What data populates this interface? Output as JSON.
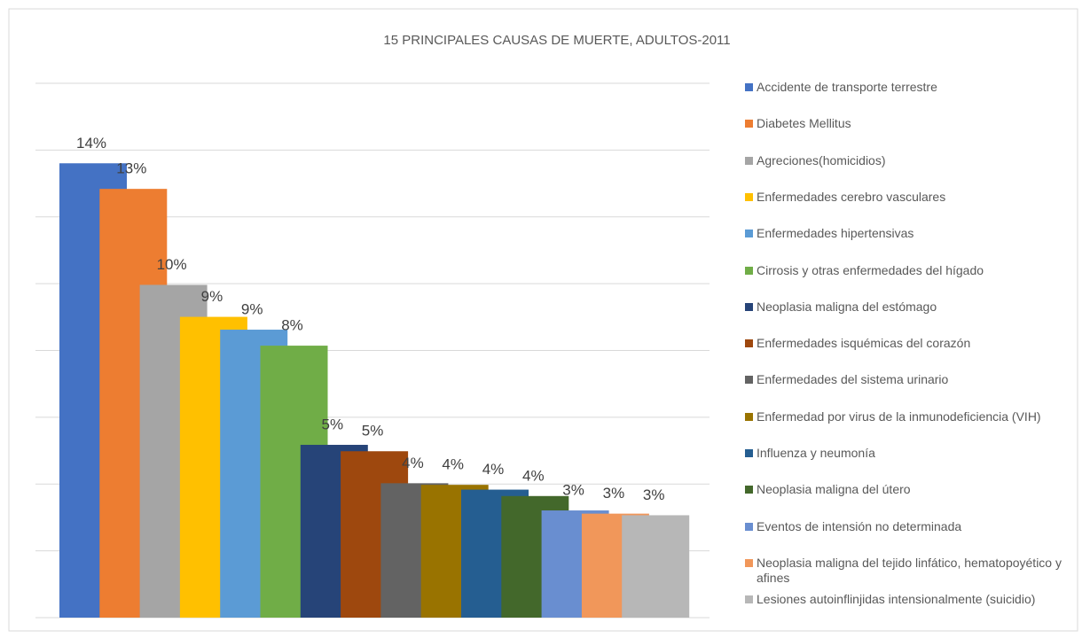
{
  "chart_data": {
    "type": "bar",
    "title": "15 PRINCIPALES CAUSAS DE MUERTE, ADULTOS-2011",
    "ylim": [
      0,
      16.7
    ],
    "grid": true,
    "series": [
      {
        "name": "Accidente de transporte terrestre",
        "color": "#4472c4",
        "values": [
          14.2
        ],
        "value_labels": [
          "14%"
        ]
      },
      {
        "name": "Diabetes Mellitus",
        "color": "#ed7d31",
        "values": [
          13.4
        ],
        "value_labels": [
          "13%"
        ]
      },
      {
        "name": "Agreciones(homicidios)",
        "color": "#a5a5a5",
        "values": [
          10.4
        ],
        "value_labels": [
          "10%"
        ]
      },
      {
        "name": "Enfermedades cerebro vasculares",
        "color": "#ffc000",
        "values": [
          9.4
        ],
        "value_labels": [
          "9%"
        ]
      },
      {
        "name": "Enfermedades hipertensivas",
        "color": "#5b9bd5",
        "values": [
          9.0
        ],
        "value_labels": [
          "9%"
        ]
      },
      {
        "name": "Cirrosis y otras enfermedades del hígado",
        "color": "#70ad47",
        "values": [
          8.5
        ],
        "value_labels": [
          "8%"
        ]
      },
      {
        "name": "Neoplasia maligna del estómago",
        "color": "#264478",
        "values": [
          5.4
        ],
        "value_labels": [
          "5%"
        ]
      },
      {
        "name": "Enfermedades isquémicas del corazón",
        "color": "#9e480e",
        "values": [
          5.2
        ],
        "value_labels": [
          "5%"
        ]
      },
      {
        "name": "Enfermedades del sistema urinario",
        "color": "#636363",
        "values": [
          4.2
        ],
        "value_labels": [
          "4%"
        ]
      },
      {
        "name": "Enfermedad por virus de la inmunodeficiencia (VIH)",
        "color": "#997300",
        "values": [
          4.15
        ],
        "value_labels": [
          "4%"
        ]
      },
      {
        "name": "Influenza y neumonía",
        "color": "#255e91",
        "values": [
          4.0
        ],
        "value_labels": [
          "4%"
        ]
      },
      {
        "name": "Neoplasia maligna del útero",
        "color": "#43682b",
        "values": [
          3.8
        ],
        "value_labels": [
          "4%"
        ]
      },
      {
        "name": "Eventos de intensión no determinada",
        "color": "#698ed0",
        "values": [
          3.35
        ],
        "value_labels": [
          "3%"
        ]
      },
      {
        "name": "Neoplasia maligna del tejido linfático, hematopoyético y afines",
        "color": "#f1975a",
        "values": [
          3.25
        ],
        "value_labels": [
          "3%"
        ]
      },
      {
        "name": "Lesiones autoinflinjidas intensionalmente (suicidio)",
        "color": "#b7b7b7",
        "values": [
          3.2
        ],
        "value_labels": [
          "3%"
        ]
      }
    ]
  }
}
